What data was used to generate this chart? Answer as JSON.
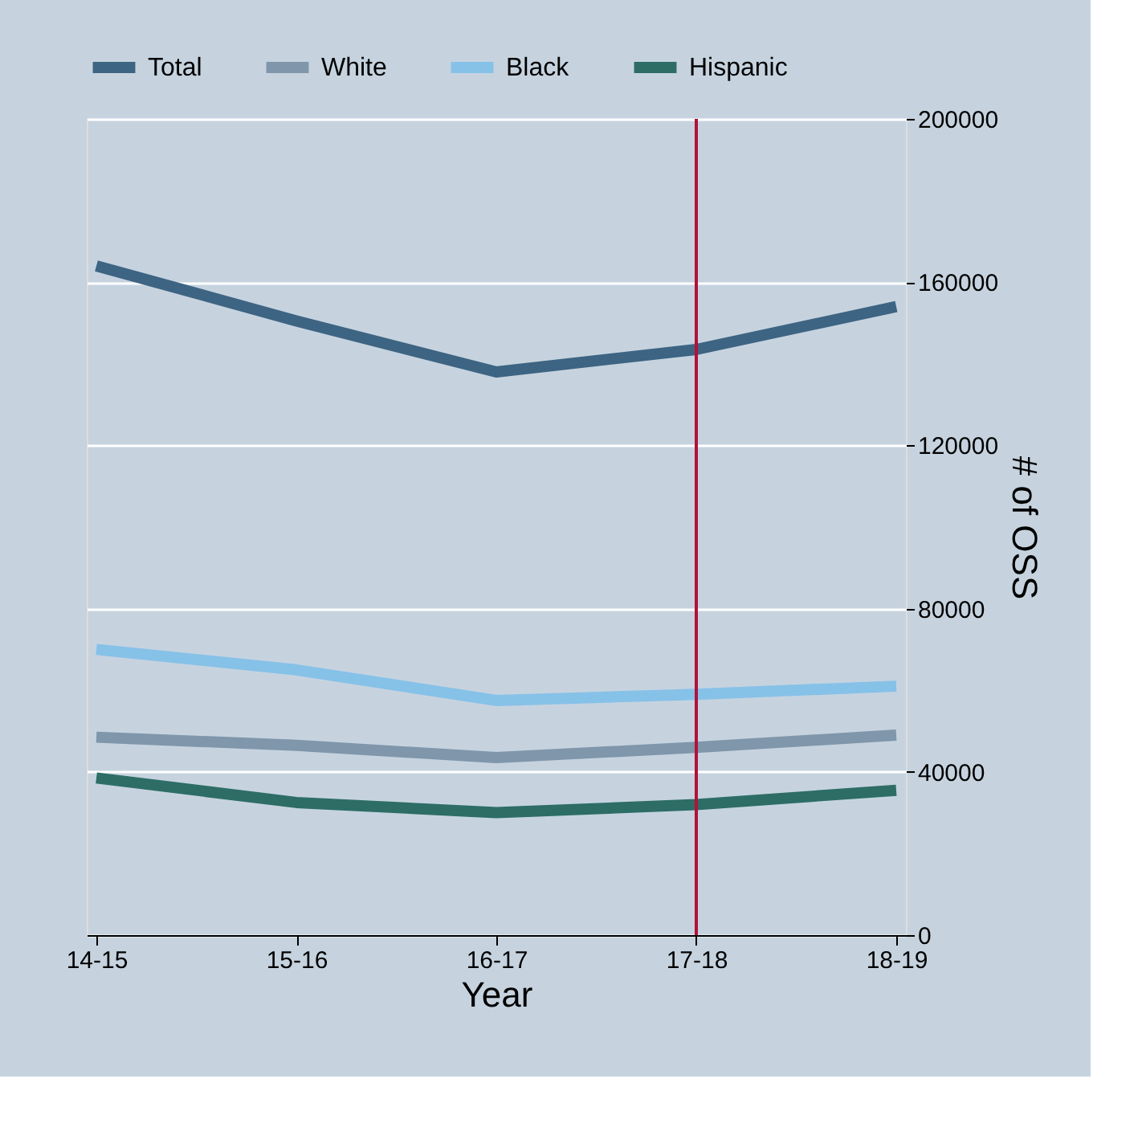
{
  "chart_data": {
    "type": "line",
    "xlabel": "Year",
    "ylabel": "# of OSS",
    "categories": [
      "14-15",
      "15-16",
      "16-17",
      "17-18",
      "18-19"
    ],
    "series": [
      {
        "name": "Total",
        "color": "#3d6482",
        "values": [
          164000,
          150500,
          138000,
          143500,
          154000
        ]
      },
      {
        "name": "White",
        "color": "#7f96ab",
        "values": [
          48500,
          46500,
          43500,
          46000,
          49000
        ]
      },
      {
        "name": "Black",
        "color": "#86c1e8",
        "values": [
          70000,
          65000,
          57500,
          59000,
          61000
        ]
      },
      {
        "name": "Hispanic",
        "color": "#2d6d66",
        "values": [
          38500,
          32500,
          30000,
          32000,
          35500
        ]
      }
    ],
    "ylim": [
      0,
      200000
    ],
    "yticks": [
      0,
      40000,
      80000,
      120000,
      160000,
      200000
    ],
    "ref_lines": [
      {
        "axis": "x",
        "value": "17-18",
        "color": "#b0123a"
      }
    ],
    "grid": "y",
    "legend": "top",
    "marker": "none",
    "line_style": "solid"
  }
}
